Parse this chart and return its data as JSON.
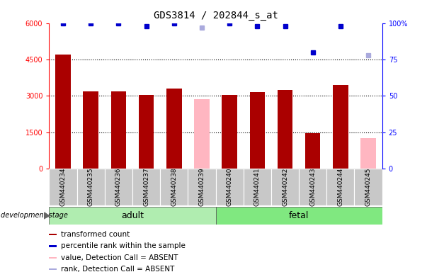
{
  "title": "GDS3814 / 202844_s_at",
  "samples": [
    "GSM440234",
    "GSM440235",
    "GSM440236",
    "GSM440237",
    "GSM440238",
    "GSM440239",
    "GSM440240",
    "GSM440241",
    "GSM440242",
    "GSM440243",
    "GSM440244",
    "GSM440245"
  ],
  "counts": [
    4700,
    3200,
    3200,
    3050,
    3300,
    null,
    3050,
    3150,
    3250,
    1450,
    3450,
    null
  ],
  "absent_counts": [
    null,
    null,
    null,
    null,
    null,
    2850,
    null,
    null,
    null,
    null,
    null,
    1250
  ],
  "percentile_ranks": [
    100,
    100,
    100,
    98,
    100,
    null,
    100,
    98,
    98,
    80,
    98,
    null
  ],
  "absent_ranks": [
    null,
    null,
    null,
    null,
    null,
    97,
    null,
    null,
    null,
    null,
    null,
    78
  ],
  "ylim_left": [
    0,
    6000
  ],
  "ylim_right": [
    0,
    100
  ],
  "yticks_left": [
    0,
    1500,
    3000,
    4500,
    6000
  ],
  "ytick_labels_left": [
    "0",
    "1500",
    "3000",
    "4500",
    "6000"
  ],
  "yticks_right": [
    0,
    25,
    50,
    75,
    100
  ],
  "ytick_labels_right": [
    "0",
    "25",
    "50",
    "75",
    "100%"
  ],
  "bar_color_present": "#AA0000",
  "bar_color_absent": "#FFB6C1",
  "dot_color_present": "#0000CC",
  "dot_color_absent": "#AAAADD",
  "bar_width": 0.55,
  "group_label_fontsize": 9,
  "tick_label_fontsize": 7,
  "title_fontsize": 10,
  "legend_items": [
    {
      "label": "transformed count",
      "color": "#AA0000"
    },
    {
      "label": "percentile rank within the sample",
      "color": "#0000CC"
    },
    {
      "label": "value, Detection Call = ABSENT",
      "color": "#FFB6C1"
    },
    {
      "label": "rank, Detection Call = ABSENT",
      "color": "#AAAADD"
    }
  ],
  "group_box_color": "#C8C8C8",
  "adult_color": "#B0EDB0",
  "fetal_color": "#80E880",
  "development_stage_label": "development stage",
  "adult_range": [
    0,
    5
  ],
  "fetal_range": [
    6,
    11
  ]
}
